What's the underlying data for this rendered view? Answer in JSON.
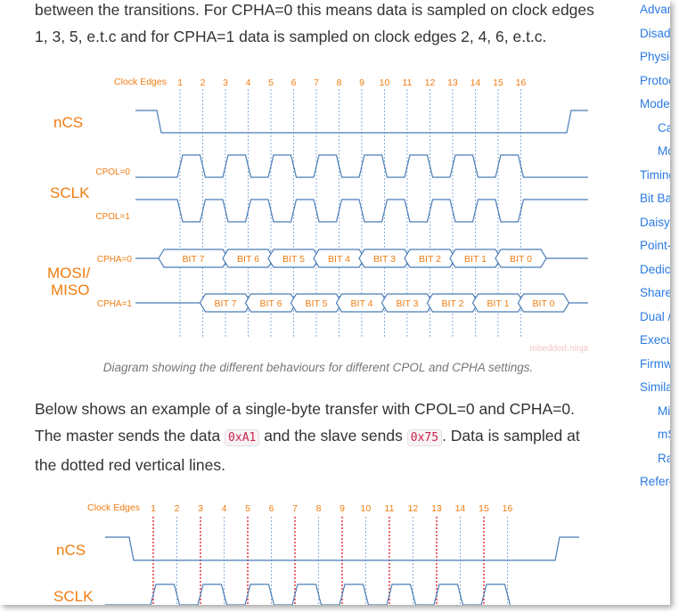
{
  "article": {
    "para1_lines": [
      "between the transitions. For CPHA=0 this means data is sampled on clock edges",
      "1, 3, 5, e.t.c and for CPHA=1 data is sampled on clock edges 2, 4, 6, e.t.c."
    ],
    "caption": "Diagram showing the different behaviours for different CPOL and CPHA settings.",
    "para2": {
      "line1": "Below shows an example of a single-byte transfer with CPOL=0 and CPHA=0.",
      "line2_a": "The master sends the data ",
      "code1": "0xA1",
      "line2_b": " and the slave sends ",
      "code2": "0x75",
      "line2_c": ". Data is sampled at",
      "line3": "the dotted red vertical lines."
    }
  },
  "diagram1": {
    "clock_edges_label": "Clock Edges",
    "edges": [
      "1",
      "2",
      "3",
      "4",
      "5",
      "6",
      "7",
      "8",
      "9",
      "10",
      "11",
      "12",
      "13",
      "14",
      "15",
      "16"
    ],
    "ncs_label": "nCS",
    "sclk_label": "SCLK",
    "cpol0_label": "CPOL=0",
    "cpol1_label": "CPOL=1",
    "mosi_label_1": "MOSI/",
    "mosi_label_2": "MISO",
    "cpha0_label": "CPHA=0",
    "cpha1_label": "CPHA=1",
    "bits": [
      "BIT 7",
      "BIT 6",
      "BIT 5",
      "BIT 4",
      "BIT 3",
      "BIT 2",
      "BIT 1",
      "BIT 0"
    ],
    "watermark": "mbedded.ninja"
  },
  "diagram2": {
    "clock_edges_label": "Clock Edges",
    "edges": [
      "1",
      "2",
      "3",
      "4",
      "5",
      "6",
      "7",
      "8",
      "9",
      "10",
      "11",
      "12",
      "13",
      "14",
      "15",
      "16"
    ],
    "ncs_label": "nCS",
    "sclk_label": "SCLK"
  },
  "toc": {
    "items": [
      {
        "label": "Advantages",
        "level": 1
      },
      {
        "label": "Disadvantages",
        "level": 1
      },
      {
        "label": "Physical Layer",
        "level": 1
      },
      {
        "label": "Protocol",
        "level": 1
      },
      {
        "label": "Modes",
        "level": 1
      },
      {
        "label": "Ca",
        "level": 2
      },
      {
        "label": "Mo",
        "level": 2
      },
      {
        "label": "Timing",
        "level": 1
      },
      {
        "label": "Bit Banging",
        "level": 1
      },
      {
        "label": "Daisy Chaining",
        "level": 1
      },
      {
        "label": "Point-to-Point",
        "level": 1
      },
      {
        "label": "Dedicated",
        "level": 1
      },
      {
        "label": "Shared",
        "level": 1
      },
      {
        "label": "Dual /",
        "level": 1
      },
      {
        "label": "Execute",
        "level": 1
      },
      {
        "label": "Firmware",
        "level": 1
      },
      {
        "label": "Similar",
        "level": 1
      },
      {
        "label": "Mi",
        "level": 2
      },
      {
        "label": "mS",
        "level": 2
      },
      {
        "label": "Ra",
        "level": 2
      },
      {
        "label": "References",
        "level": 1
      }
    ]
  },
  "colors": {
    "orange": "#f07c12",
    "signal": "#4a7cb5",
    "guide": "#6d9bd0",
    "sample": "#e0242c",
    "link": "#2a7ae2"
  }
}
